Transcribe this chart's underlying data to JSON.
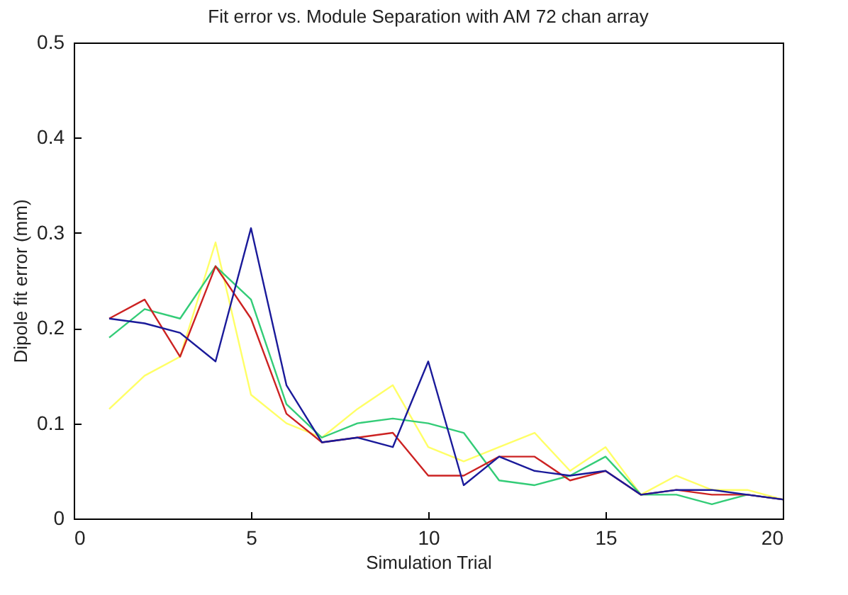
{
  "chart_data": {
    "type": "line",
    "title": "Fit error vs. Module Separation with AM 72 chan array",
    "xlabel": "Simulation Trial",
    "ylabel": "Dipole fit error (mm)",
    "x": [
      1,
      2,
      3,
      4,
      5,
      6,
      7,
      8,
      9,
      10,
      11,
      12,
      13,
      14,
      15,
      16,
      17,
      18,
      19,
      20
    ],
    "xlim": [
      0,
      20
    ],
    "xticks": [
      0,
      5,
      10,
      15,
      20
    ],
    "ylim": [
      0,
      0.5
    ],
    "yticks": [
      0,
      0.1,
      0.2,
      0.3,
      0.4,
      0.5
    ],
    "grid": false,
    "legend": false,
    "series": [
      {
        "color": "#ffff66",
        "values": [
          0.115,
          0.15,
          0.17,
          0.29,
          0.13,
          0.1,
          0.085,
          0.115,
          0.14,
          0.075,
          0.06,
          0.075,
          0.09,
          0.05,
          0.075,
          0.025,
          0.045,
          0.03,
          0.03,
          0.02
        ]
      },
      {
        "color": "#33cc77",
        "values": [
          0.19,
          0.22,
          0.21,
          0.265,
          0.23,
          0.12,
          0.085,
          0.1,
          0.105,
          0.1,
          0.09,
          0.04,
          0.035,
          0.045,
          0.065,
          0.025,
          0.025,
          0.015,
          0.025,
          0.02
        ]
      },
      {
        "color": "#cc2222",
        "values": [
          0.21,
          0.23,
          0.17,
          0.265,
          0.21,
          0.11,
          0.08,
          0.085,
          0.09,
          0.045,
          0.045,
          0.065,
          0.065,
          0.04,
          0.05,
          0.025,
          0.03,
          0.025,
          0.025,
          0.02
        ]
      },
      {
        "color": "#1a1a9a",
        "values": [
          0.21,
          0.205,
          0.195,
          0.165,
          0.305,
          0.14,
          0.08,
          0.085,
          0.075,
          0.165,
          0.035,
          0.065,
          0.05,
          0.045,
          0.05,
          0.025,
          0.03,
          0.03,
          0.025,
          0.02
        ]
      }
    ]
  }
}
